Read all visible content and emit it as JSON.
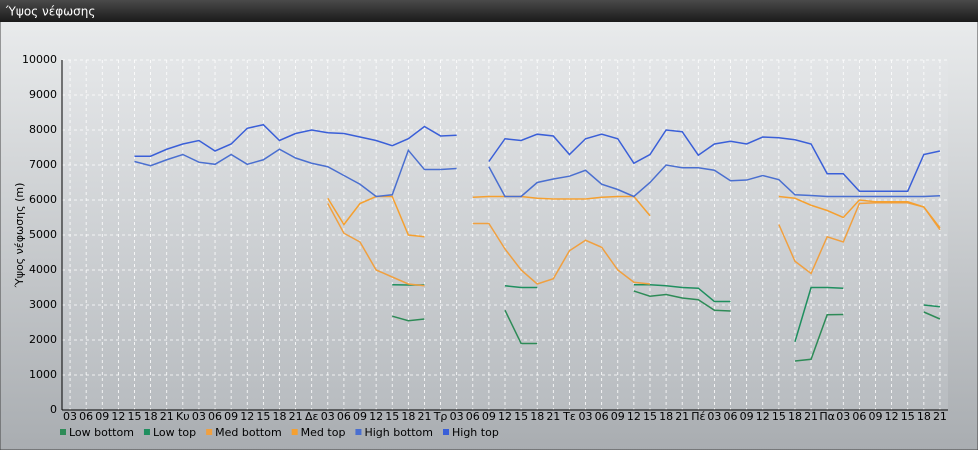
{
  "chart_data": {
    "type": "line",
    "title": "Ύψος νέφωσης",
    "ylabel": "Ύψος νέφωσης (m)",
    "categories": [
      "03",
      "06",
      "09",
      "12",
      "15",
      "18",
      "21",
      "Κυ",
      "03",
      "06",
      "09",
      "12",
      "15",
      "18",
      "21",
      "Δε",
      "03",
      "06",
      "09",
      "12",
      "15",
      "18",
      "21",
      "Τρ",
      "03",
      "06",
      "09",
      "12",
      "15",
      "18",
      "21",
      "Τε",
      "03",
      "06",
      "09",
      "12",
      "15",
      "18",
      "21",
      "Πέ",
      "03",
      "06",
      "09",
      "12",
      "15",
      "18",
      "21",
      "Πα",
      "03",
      "06",
      "09",
      "12",
      "15",
      "18",
      "21"
    ],
    "ylim": [
      0,
      10000
    ],
    "yticks": [
      0,
      1000,
      2000,
      3000,
      4000,
      5000,
      6000,
      7000,
      8000,
      9000,
      10000
    ],
    "grid": true,
    "series": [
      {
        "name": "Low bottom",
        "color": "#2e8b57",
        "values": [
          null,
          null,
          null,
          null,
          null,
          null,
          null,
          null,
          null,
          null,
          null,
          null,
          null,
          null,
          null,
          null,
          null,
          null,
          null,
          null,
          2680,
          2550,
          2600,
          null,
          null,
          null,
          null,
          2850,
          1900,
          1900,
          null,
          null,
          null,
          null,
          null,
          3400,
          3250,
          3300,
          3200,
          3150,
          2850,
          2830,
          null,
          null,
          null,
          1400,
          1450,
          2720,
          2730,
          null,
          null,
          null,
          null,
          2800,
          2600
        ]
      },
      {
        "name": "Low top",
        "color": "#1f8f5f",
        "values": [
          null,
          null,
          null,
          null,
          null,
          null,
          null,
          null,
          null,
          null,
          null,
          null,
          null,
          null,
          null,
          null,
          null,
          null,
          null,
          null,
          3580,
          3570,
          3570,
          null,
          null,
          null,
          null,
          3550,
          3500,
          3500,
          null,
          null,
          null,
          null,
          null,
          3580,
          3580,
          3550,
          3500,
          3480,
          3100,
          3100,
          null,
          null,
          null,
          1950,
          3500,
          3500,
          3480,
          null,
          null,
          null,
          null,
          3000,
          2950
        ]
      },
      {
        "name": "Med bottom",
        "color": "#f0a040",
        "values": [
          null,
          null,
          null,
          null,
          null,
          null,
          null,
          null,
          null,
          null,
          null,
          null,
          null,
          null,
          null,
          null,
          5900,
          5050,
          4800,
          4000,
          3800,
          3600,
          3550,
          null,
          null,
          5330,
          5330,
          4600,
          4000,
          3600,
          3750,
          4550,
          4850,
          4650,
          4000,
          3650,
          3600,
          null,
          null,
          null,
          null,
          null,
          null,
          null,
          5300,
          4250,
          3900,
          4950,
          4800,
          5900,
          5920,
          5920,
          5920,
          5800,
          5150
        ]
      },
      {
        "name": "Med top",
        "color": "#f5a030",
        "values": [
          null,
          null,
          null,
          null,
          null,
          null,
          null,
          null,
          null,
          null,
          null,
          null,
          null,
          null,
          null,
          null,
          6050,
          5300,
          5900,
          6100,
          6100,
          5000,
          4950,
          null,
          null,
          6080,
          6100,
          6100,
          6100,
          6050,
          6030,
          6030,
          6030,
          6080,
          6100,
          6100,
          5550,
          null,
          null,
          null,
          null,
          null,
          null,
          null,
          6100,
          6050,
          5850,
          5700,
          5500,
          6000,
          5950,
          5950,
          5950,
          5800,
          5200
        ]
      },
      {
        "name": "High bottom",
        "color": "#4a6fd0",
        "values": [
          null,
          null,
          null,
          null,
          7100,
          6980,
          7150,
          7300,
          7080,
          7020,
          7300,
          7020,
          7150,
          7450,
          7200,
          7050,
          6950,
          6700,
          6450,
          6100,
          6150,
          7420,
          6870,
          6870,
          6900,
          null,
          6950,
          6100,
          6100,
          6500,
          6600,
          6680,
          6850,
          6450,
          6300,
          6100,
          6500,
          7000,
          6920,
          6920,
          6850,
          6550,
          6570,
          6700,
          6580,
          6150,
          6130,
          6100,
          6100,
          6100,
          6100,
          6100,
          6100,
          6100,
          6120
        ]
      },
      {
        "name": "High top",
        "color": "#3a5fd8",
        "values": [
          null,
          null,
          null,
          null,
          7250,
          7250,
          7450,
          7600,
          7700,
          7400,
          7600,
          8050,
          8150,
          7700,
          7900,
          8000,
          7920,
          7900,
          7800,
          7700,
          7550,
          7750,
          8100,
          7830,
          7850,
          null,
          7100,
          7750,
          7700,
          7880,
          7830,
          7300,
          7750,
          7880,
          7750,
          7050,
          7300,
          8000,
          7950,
          7280,
          7600,
          7680,
          7600,
          7800,
          7780,
          7720,
          7600,
          6750,
          6750,
          6250,
          6250,
          6250,
          6250,
          7300,
          7400
        ]
      }
    ]
  }
}
